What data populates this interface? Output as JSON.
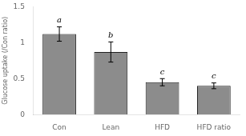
{
  "chart_data": {
    "type": "bar",
    "categories": [
      "Con",
      "Lean",
      "HFD",
      "HFD ratio"
    ],
    "values": [
      1.12,
      0.87,
      0.45,
      0.4
    ],
    "errors": [
      0.1,
      0.14,
      0.05,
      0.04
    ],
    "letters": [
      "a",
      "b",
      "c",
      "c"
    ],
    "color": "#8c8c8c",
    "ylabel": "Glucose uptake (/Con ratio)",
    "ylim": [
      0,
      1.5
    ],
    "yticks": [
      0,
      0.5,
      1,
      1.5
    ],
    "grid": false
  }
}
